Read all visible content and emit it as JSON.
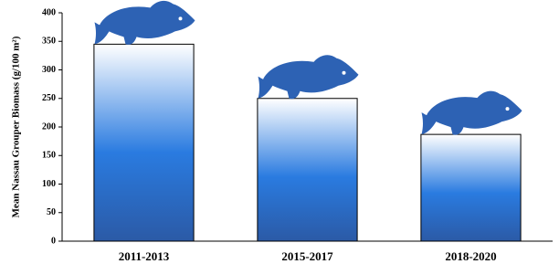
{
  "chart_data": {
    "type": "bar",
    "y_label": "Mean Nassau Grouper Biomass (g/100 m²)",
    "categories": [
      "2011-2013",
      "2015-2017",
      "2018-2020"
    ],
    "values": [
      345,
      250,
      187
    ],
    "color": "#2a7be0",
    "ylim": [
      0,
      400
    ],
    "yticks": [
      0,
      50,
      100,
      150,
      200,
      250,
      300,
      350,
      400
    ]
  }
}
